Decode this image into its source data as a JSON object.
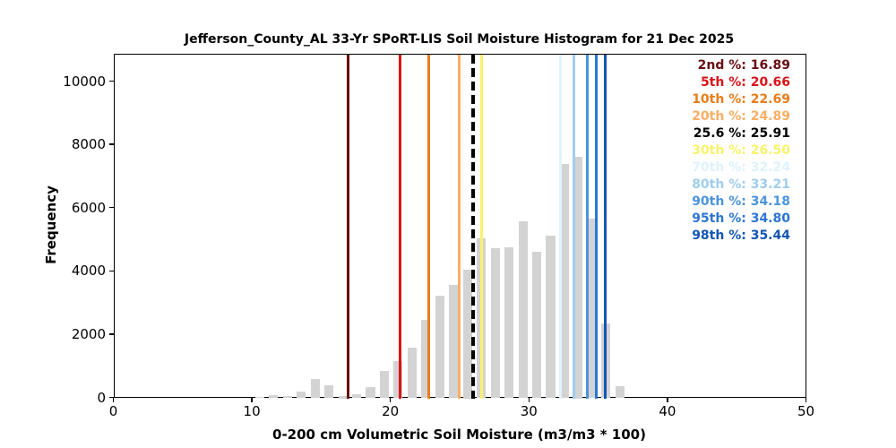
{
  "title": "Jefferson_County_AL 33-Yr SPoRT-LIS Soil Moisture Histogram for 21 Dec 2025",
  "axes": {
    "xlabel": "0-200 cm Volumetric Soil Moisture (m3/m3 * 100)",
    "ylabel": "Frequency",
    "x_ticks": [
      0,
      10,
      20,
      30,
      40,
      50
    ],
    "y_ticks": [
      0,
      2000,
      4000,
      6000,
      8000,
      10000
    ],
    "xlim": [
      0,
      50
    ],
    "ylim": [
      0,
      10880
    ],
    "grid": "off"
  },
  "chart_data": {
    "type": "bar",
    "subtype": "histogram",
    "bar_color": "#d3d3d3",
    "bin_width": 1,
    "bar_display_width": 0.65,
    "bin_centers": [
      10.5,
      11.5,
      12.5,
      13.5,
      14.5,
      15.5,
      16.5,
      17.5,
      18.5,
      19.5,
      20.5,
      21.5,
      22.5,
      23.5,
      24.5,
      25.5,
      26.5,
      27.5,
      28.5,
      29.5,
      30.5,
      31.5,
      32.5,
      33.5,
      34.5,
      35.5,
      36.5
    ],
    "frequencies": [
      50,
      90,
      80,
      220,
      600,
      400,
      85,
      130,
      350,
      860,
      1180,
      1590,
      2490,
      3240,
      3590,
      4080,
      5060,
      4750,
      4770,
      5600,
      4630,
      5150,
      7400,
      7650,
      5690,
      2370,
      380
    ],
    "legend_position": "upper right",
    "legend_separator": ": ",
    "percentiles": [
      {
        "id": "2nd",
        "label": "2nd %",
        "value": "16.89",
        "color": "#670d12",
        "style": "solid"
      },
      {
        "id": "5th",
        "label": "5th %",
        "value": "20.66",
        "color": "#d91418",
        "style": "solid"
      },
      {
        "id": "10th",
        "label": "10th %",
        "value": "22.69",
        "color": "#e87d1a",
        "style": "solid"
      },
      {
        "id": "20th",
        "label": "20th %",
        "value": "24.89",
        "color": "#fbae63",
        "style": "solid"
      },
      {
        "id": "25.6",
        "label": "25.6 %",
        "value": "25.91",
        "color": "#000000",
        "style": "dashed"
      },
      {
        "id": "30th",
        "label": "30th %",
        "value": "26.50",
        "color": "#f9f26b",
        "style": "solid"
      },
      {
        "id": "70th",
        "label": "70th %",
        "value": "32.24",
        "color": "#def3fb",
        "style": "solid"
      },
      {
        "id": "80th",
        "label": "80th %",
        "value": "33.21",
        "color": "#a0cdee",
        "style": "solid"
      },
      {
        "id": "90th",
        "label": "90th %",
        "value": "34.18",
        "color": "#4b94de",
        "style": "solid"
      },
      {
        "id": "95th",
        "label": "95th %",
        "value": "34.80",
        "color": "#2c76d2",
        "style": "solid"
      },
      {
        "id": "98th",
        "label": "98th %",
        "value": "35.44",
        "color": "#1356b5",
        "style": "solid"
      }
    ]
  }
}
